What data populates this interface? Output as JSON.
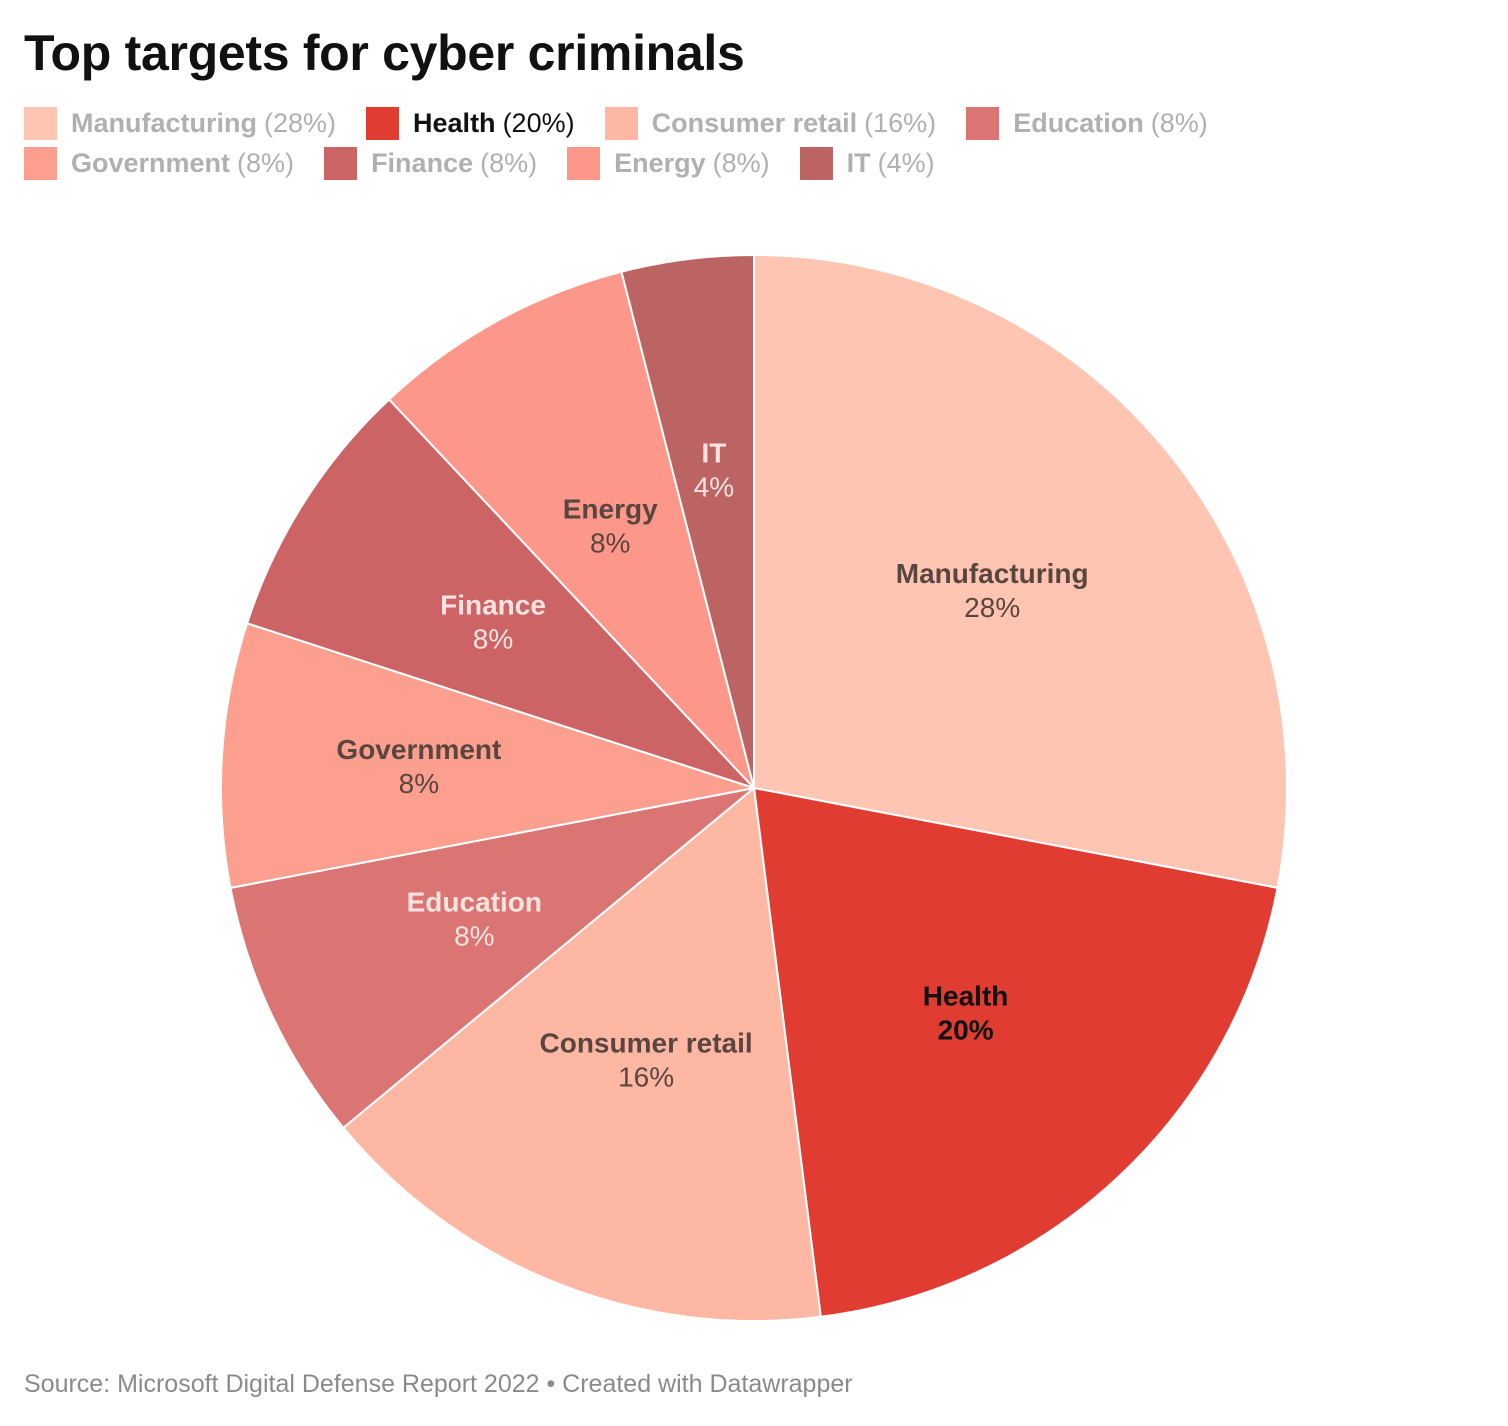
{
  "title": "Top targets for cyber criminals",
  "source": "Source: Microsoft Digital Defense Report 2022 • Created with Datawrapper",
  "legend": [
    {
      "name": "Manufacturing",
      "pct": "(28%)"
    },
    {
      "name": "Health",
      "pct": "(20%)"
    },
    {
      "name": "Consumer retail",
      "pct": "(16%)"
    },
    {
      "name": "Education",
      "pct": "(8%)"
    },
    {
      "name": "Government",
      "pct": "(8%)"
    },
    {
      "name": "Finance",
      "pct": "(8%)"
    },
    {
      "name": "Energy",
      "pct": "(8%)"
    },
    {
      "name": "IT",
      "pct": "(4%)"
    }
  ],
  "chart_data": {
    "type": "pie",
    "categories": [
      "Manufacturing",
      "Health",
      "Consumer retail",
      "Education",
      "Government",
      "Finance",
      "Energy",
      "IT"
    ],
    "values": [
      28,
      20,
      16,
      8,
      8,
      8,
      8,
      4
    ],
    "value_labels": [
      "28%",
      "20%",
      "16%",
      "8%",
      "8%",
      "8%",
      "8%",
      "4%"
    ],
    "colors": [
      "#fec5b3",
      "#e03c31",
      "#fdb7a2",
      "#db7573",
      "#fc9f8f",
      "#cc6466",
      "#fc978a",
      "#bb6463"
    ],
    "label_colors": [
      "#5a4640",
      "#111111",
      "#5a4640",
      "#fbe3e0",
      "#5a4640",
      "#fbe3e0",
      "#5a4640",
      "#fbe3e0"
    ],
    "highlight": "Health",
    "start": "12 o'clock",
    "direction": "clockwise"
  }
}
